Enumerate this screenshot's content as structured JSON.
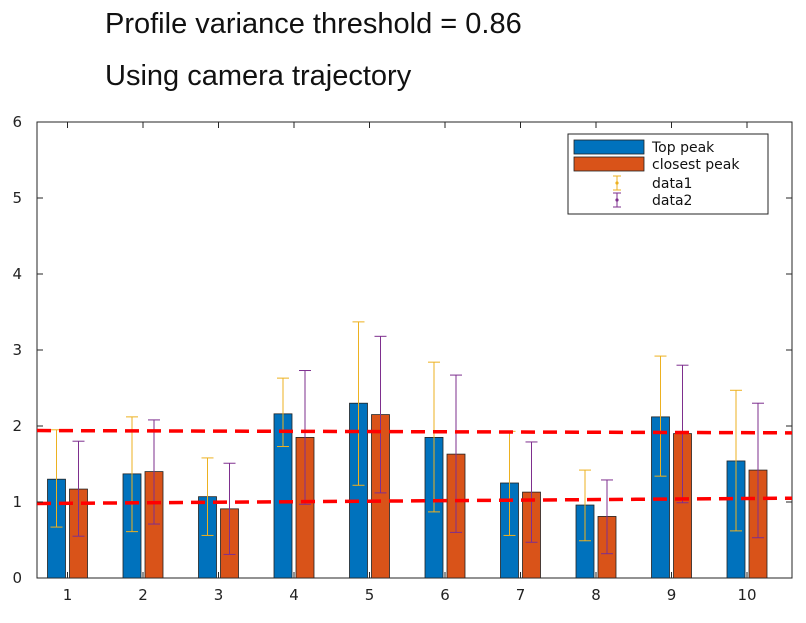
{
  "title_lines": [
    "Profile variance threshold = 0.86",
    "Using camera trajectory"
  ],
  "chart_data": {
    "type": "bar",
    "title": "Profile variance threshold = 0.86\nUsing camera trajectory",
    "xlabel": "",
    "ylabel": "",
    "categories": [
      "1",
      "2",
      "3",
      "4",
      "5",
      "6",
      "7",
      "8",
      "9",
      "10"
    ],
    "ylim": [
      0,
      6
    ],
    "yticks": [
      "0",
      "1",
      "2",
      "3",
      "4",
      "5",
      "6"
    ],
    "grid": false,
    "legend_position": "top-right",
    "series": [
      {
        "name": "Top peak",
        "color": "#0072BD",
        "values": [
          1.3,
          1.37,
          1.07,
          2.16,
          2.3,
          1.85,
          1.25,
          0.96,
          2.12,
          1.54
        ]
      },
      {
        "name": "closest peak",
        "color": "#D95319",
        "values": [
          1.17,
          1.4,
          0.91,
          1.85,
          2.15,
          1.63,
          1.13,
          0.81,
          1.9,
          1.42
        ]
      }
    ],
    "error_bars": [
      {
        "name": "data1",
        "color": "#EDB120",
        "lower": [
          0.67,
          0.61,
          0.56,
          1.73,
          1.22,
          0.87,
          0.56,
          0.49,
          1.34,
          0.62
        ],
        "upper": [
          1.95,
          2.12,
          1.58,
          2.63,
          3.37,
          2.84,
          1.93,
          1.42,
          2.92,
          2.47
        ]
      },
      {
        "name": "data2",
        "color": "#7E2F8E",
        "lower": [
          0.55,
          0.71,
          0.31,
          0.97,
          1.12,
          0.6,
          0.47,
          0.32,
          0.99,
          0.53
        ],
        "upper": [
          1.8,
          2.08,
          1.51,
          2.73,
          3.18,
          2.67,
          1.79,
          1.29,
          2.8,
          2.3
        ]
      }
    ],
    "reference_lines": [
      {
        "color": "#FF0000",
        "style": "dashed",
        "y_start": 0.98,
        "y_end": 1.05
      },
      {
        "color": "#FF0000",
        "style": "dashed",
        "y_start": 1.94,
        "y_end": 1.91
      }
    ]
  }
}
